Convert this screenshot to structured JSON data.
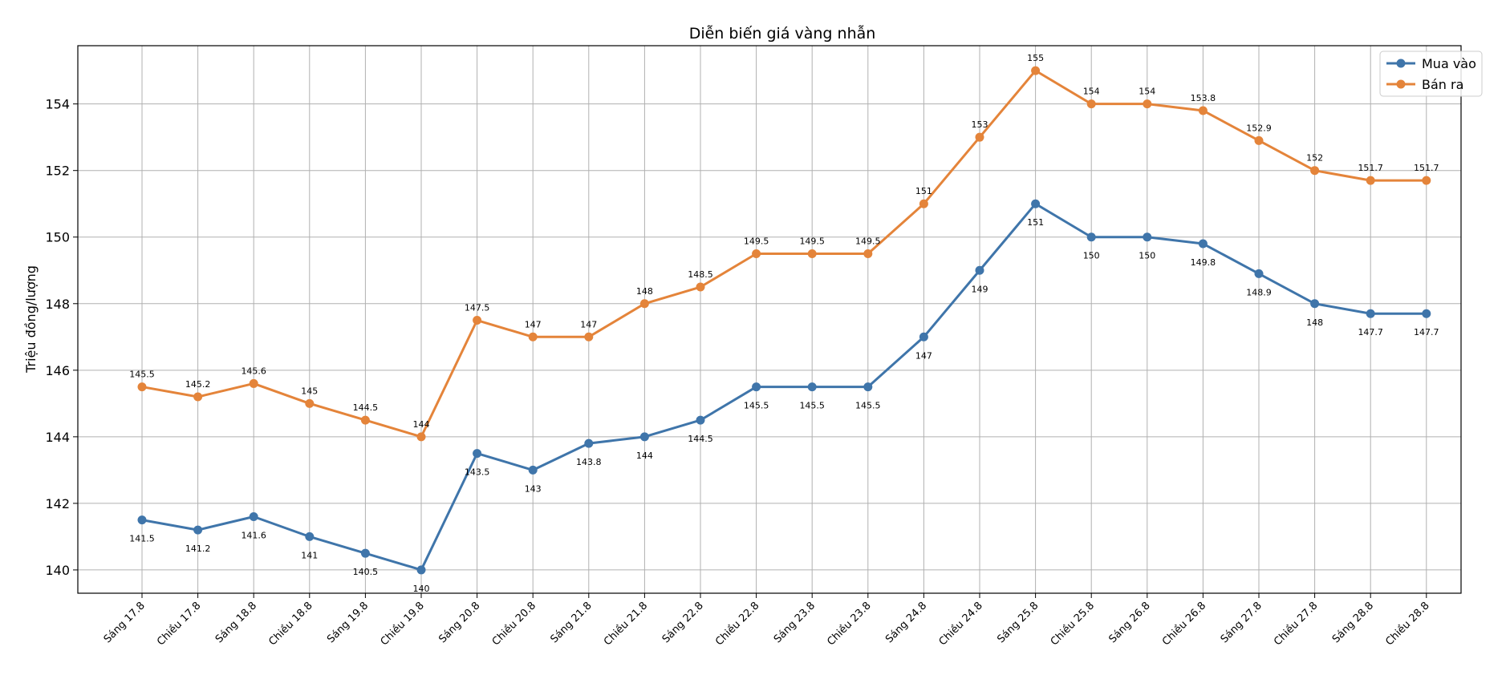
{
  "chart_data": {
    "type": "line",
    "title": "Diễn biến giá vàng nhẫn",
    "xlabel": "",
    "ylabel": "Triệu đồng/lượng",
    "ylim": [
      139.3,
      155.75
    ],
    "yticks": [
      140,
      142,
      144,
      146,
      148,
      150,
      152,
      154
    ],
    "grid": true,
    "legend_position": "top-right",
    "categories": [
      "Sáng 17.8",
      "Chiều 17.8",
      "Sáng 18.8",
      "Chiều 18.8",
      "Sáng 19.8",
      "Chiều 19.8",
      "Sáng 20.8",
      "Chiều 20.8",
      "Sáng 21.8",
      "Chiều 21.8",
      "Sáng 22.8",
      "Chiều 22.8",
      "Sáng 23.8",
      "Chiều 23.8",
      "Sáng 24.8",
      "Chiều 24.8",
      "Sáng 25.8",
      "Chiều 25.8",
      "Sáng 26.8",
      "Chiều 26.8",
      "Sáng 27.8",
      "Chiều 27.8",
      "Sáng 28.8",
      "Chiều 28.8"
    ],
    "series": [
      {
        "name": "Mua vào",
        "color": "#3f75aa",
        "label_position": "below",
        "values": [
          141.5,
          141.2,
          141.6,
          141,
          140.5,
          140,
          143.5,
          143,
          143.8,
          144,
          144.5,
          145.5,
          145.5,
          145.5,
          147,
          149,
          151,
          150,
          150,
          149.8,
          148.9,
          148,
          147.7,
          147.7
        ]
      },
      {
        "name": "Bán ra",
        "color": "#e4843a",
        "label_position": "above",
        "values": [
          145.5,
          145.2,
          145.6,
          145,
          144.5,
          144,
          147.5,
          147,
          147,
          148,
          148.5,
          149.5,
          149.5,
          149.5,
          151,
          153,
          155,
          154,
          154,
          153.8,
          152.9,
          152,
          151.7,
          151.7
        ]
      }
    ]
  }
}
